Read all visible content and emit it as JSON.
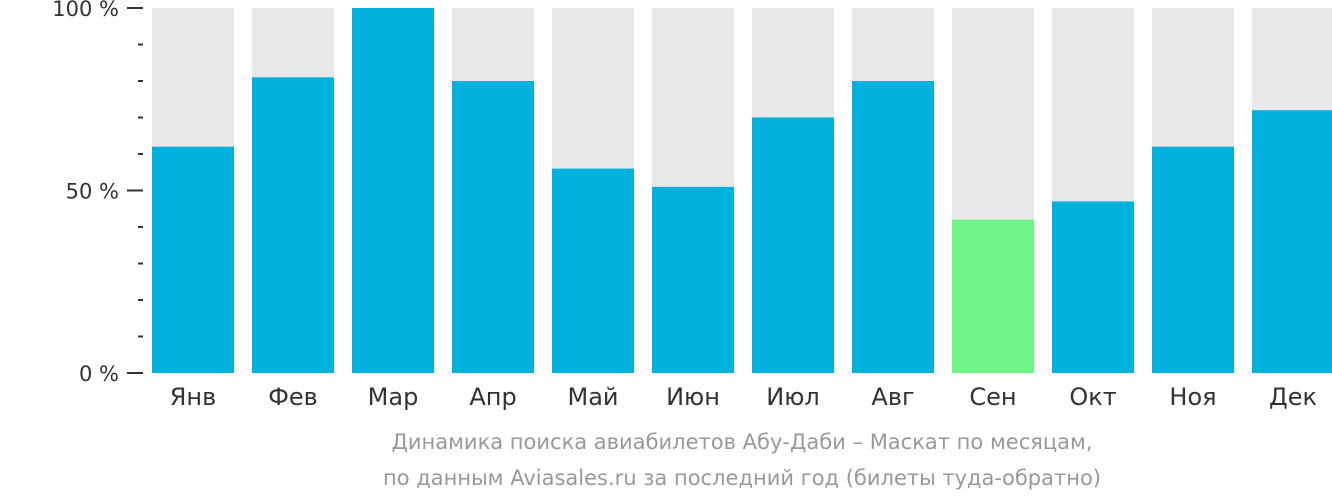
{
  "chart_data": {
    "type": "bar",
    "title": "",
    "xlabel": "",
    "ylabel": "",
    "categories": [
      "Янв",
      "Фев",
      "Мар",
      "Апр",
      "Май",
      "Июн",
      "Июл",
      "Авг",
      "Сен",
      "Окт",
      "Ноя",
      "Дек"
    ],
    "values": [
      62,
      81,
      100,
      80,
      56,
      51,
      70,
      80,
      42,
      47,
      62,
      72
    ],
    "ylim": [
      0,
      100
    ],
    "yticks": [
      {
        "value": 100,
        "label": "100 %"
      },
      {
        "value": 50,
        "label": "50 %"
      },
      {
        "value": 0,
        "label": "0 %"
      }
    ],
    "minor_tick_step": 10,
    "background_bar_value": 100,
    "highlight_category": "Сен",
    "colors": {
      "bar": "#00b1dd",
      "bar_highlight": "#6ef487",
      "bar_background": "#e8e8e8",
      "axis": "#333333"
    },
    "grid": false,
    "legend": "none"
  },
  "caption": {
    "line1": "Динамика поиска авиабилетов Абу-Даби – Маскат по месяцам,",
    "line2": "по данным Aviasales.ru за последний год (билеты туда-обратно)"
  }
}
